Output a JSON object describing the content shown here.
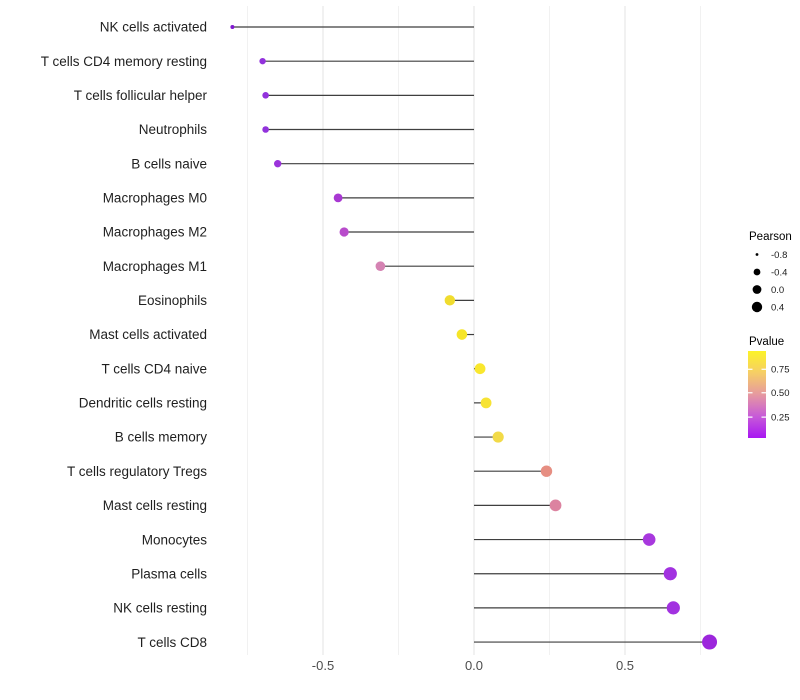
{
  "chart_data": {
    "type": "lollipop",
    "title": "",
    "xlabel": "",
    "ylabel": "",
    "x_axis": {
      "tick_labels": [
        "-0.5",
        "0.0",
        "0.5"
      ],
      "tick_values": [
        -0.5,
        0.0,
        0.5
      ],
      "minor_tick_values": [
        -0.75,
        -0.25,
        0.25,
        0.75
      ],
      "range": [
        -0.85,
        0.8
      ],
      "grid": "major and minor vertical gridlines, no axis line"
    },
    "points": [
      {
        "label": "NK cells activated",
        "pearson": -0.8,
        "color": "#8018d0",
        "radius": 2.0
      },
      {
        "label": "T cells CD4 memory resting",
        "pearson": -0.7,
        "color": "#9232dc",
        "radius": 3.2
      },
      {
        "label": "T cells follicular helper",
        "pearson": -0.69,
        "color": "#9232dc",
        "radius": 3.3
      },
      {
        "label": "Neutrophils",
        "pearson": -0.69,
        "color": "#9232dc",
        "radius": 3.3
      },
      {
        "label": "B cells naive",
        "pearson": -0.65,
        "color": "#9b33db",
        "radius": 3.7
      },
      {
        "label": "Macrophages M0",
        "pearson": -0.45,
        "color": "#a838d2",
        "radius": 4.4
      },
      {
        "label": "Macrophages M2",
        "pearson": -0.43,
        "color": "#b84bcb",
        "radius": 4.6
      },
      {
        "label": "Macrophages M1",
        "pearson": -0.31,
        "color": "#d583b3",
        "radius": 4.8
      },
      {
        "label": "Eosinophils",
        "pearson": -0.08,
        "color": "#f0dc2e",
        "radius": 5.2
      },
      {
        "label": "Mast cells activated",
        "pearson": -0.04,
        "color": "#f6e528",
        "radius": 5.3
      },
      {
        "label": "T cells CD4 naive",
        "pearson": 0.02,
        "color": "#f9e72e",
        "radius": 5.4
      },
      {
        "label": "Dendritic cells resting",
        "pearson": 0.04,
        "color": "#f7e334",
        "radius": 5.4
      },
      {
        "label": "B cells memory",
        "pearson": 0.08,
        "color": "#f2da48",
        "radius": 5.6
      },
      {
        "label": "T cells regulatory  Tregs",
        "pearson": 0.24,
        "color": "#e68e82",
        "radius": 5.7
      },
      {
        "label": "Mast cells resting",
        "pearson": 0.27,
        "color": "#dc83a0",
        "radius": 5.9
      },
      {
        "label": "Monocytes",
        "pearson": 0.58,
        "color": "#a838de",
        "radius": 6.3
      },
      {
        "label": "Plasma cells",
        "pearson": 0.65,
        "color": "#a232e0",
        "radius": 6.6
      },
      {
        "label": "NK cells resting",
        "pearson": 0.66,
        "color": "#a232e0",
        "radius": 6.6
      },
      {
        "label": "T cells CD8",
        "pearson": 0.78,
        "color": "#9c26dc",
        "radius": 7.5
      }
    ],
    "legend": {
      "size": {
        "title": "Pearson",
        "dot_color": "#000000",
        "entries": [
          {
            "label": "-0.8",
            "radius": 1.4
          },
          {
            "label": "-0.4",
            "radius": 3.4
          },
          {
            "label": "0.0",
            "radius": 4.4
          },
          {
            "label": "0.4",
            "radius": 5.2
          }
        ]
      },
      "color": {
        "title": "Pvalue",
        "gradient_stops": [
          "#fcf328",
          "#f6ce66",
          "#e699a0",
          "#c75bd8",
          "#a816f2"
        ],
        "ticks": [
          {
            "label": "0.75",
            "pos": 0.21
          },
          {
            "label": "0.50",
            "pos": 0.48
          },
          {
            "label": "0.25",
            "pos": 0.76
          }
        ]
      }
    },
    "colors": {
      "stem": "#3f3f3f",
      "grid_major": "#e3e3e3",
      "grid_minor": "#f1f1f1",
      "background": "#ffffff"
    }
  }
}
